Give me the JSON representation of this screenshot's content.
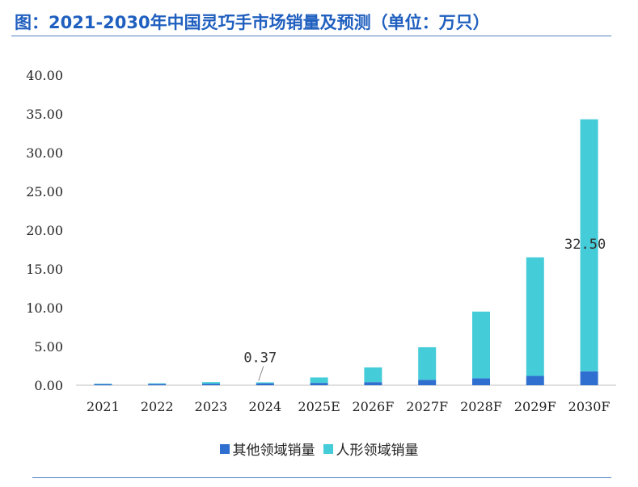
{
  "header": {
    "title": "图：2021-2030年中国灵巧手市场销量及预测（单位：万只）"
  },
  "chart_data": {
    "type": "bar",
    "stacked": true,
    "title": "图：2021-2030年中国灵巧手市场销量及预测（单位：万只）",
    "categories": [
      "2021",
      "2022",
      "2023",
      "2024",
      "2025E",
      "2026F",
      "2027F",
      "2028F",
      "2029F",
      "2030F"
    ],
    "series": [
      {
        "name": "其他领域销量",
        "color": "#2f6fcf",
        "values": [
          0.15,
          0.18,
          0.2,
          0.25,
          0.3,
          0.4,
          0.7,
          0.9,
          1.2,
          1.8
        ]
      },
      {
        "name": "人形领域销量",
        "color": "#44ccd8",
        "values": [
          0.05,
          0.07,
          0.2,
          0.12,
          0.7,
          1.9,
          4.2,
          8.6,
          15.3,
          32.5
        ]
      }
    ],
    "y_ticks": [
      "0.00",
      "5.00",
      "10.00",
      "15.00",
      "20.00",
      "25.00",
      "30.00",
      "35.00",
      "40.00"
    ],
    "ylim": [
      0,
      40
    ],
    "annotations": [
      {
        "category": "2024",
        "text": "0.37"
      },
      {
        "category": "2030F",
        "text": "32.50"
      }
    ],
    "xlabel": "",
    "ylabel": "",
    "legend_position": "bottom"
  },
  "legend": {
    "items": [
      {
        "label": "其他领域销量",
        "color": "#2f6fcf"
      },
      {
        "label": "人形领域销量",
        "color": "#44ccd8"
      }
    ]
  }
}
